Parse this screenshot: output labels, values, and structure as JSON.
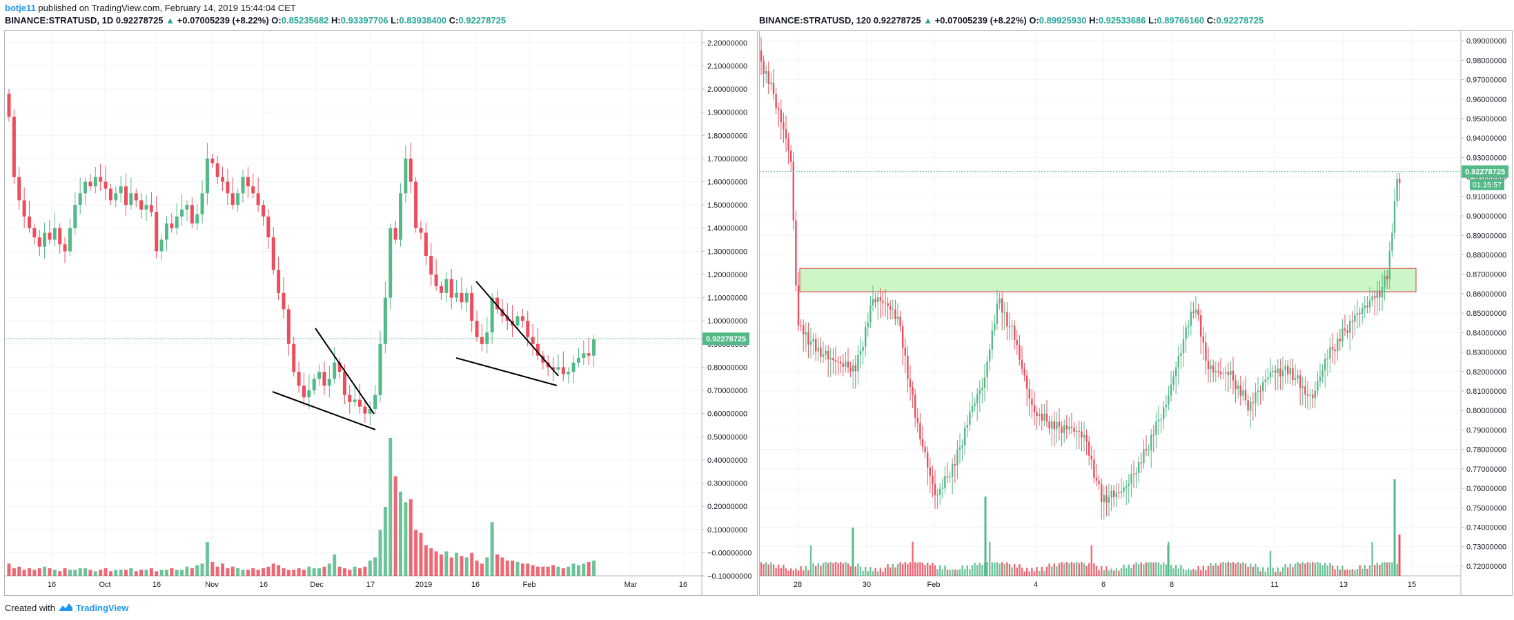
{
  "header": {
    "author": "botje11",
    "published_text": "published on TradingView.com, February 14, 2019 15:44:04 CET"
  },
  "footer": {
    "created_with": "Created with",
    "brand": "TradingView"
  },
  "colors": {
    "up": "#53b987",
    "down": "#eb4d5c",
    "zone_fill": "#ccf5c8",
    "zone_border": "#e53935",
    "price_label": "#53b987"
  },
  "chart_data": [
    {
      "type": "candlestick",
      "symbol": "BINANCE:STRATUSD, 1D",
      "last": "0.92278725",
      "change": "+0.07005239 (+8.22%)",
      "open_label": "O:",
      "open": "0.85235682",
      "high_label": "H:",
      "high": "0.93397706",
      "low_label": "L:",
      "low": "0.83938400",
      "close_label": "C:",
      "close": "0.92278725",
      "price_label": "0.92278725",
      "ylim": [
        -0.1,
        2.25
      ],
      "y_ticks": [
        "2.20000000",
        "2.10000000",
        "2.00000000",
        "1.90000000",
        "1.80000000",
        "1.70000000",
        "1.60000000",
        "1.50000000",
        "1.40000000",
        "1.30000000",
        "1.20000000",
        "1.10000000",
        "1.00000000",
        "0.90000000",
        "0.80000000",
        "0.70000000",
        "0.60000000",
        "0.50000000",
        "0.40000000",
        "0.30000000",
        "0.20000000",
        "0.10000000",
        "−0.00000000",
        "−0.10000000"
      ],
      "x_ticks": [
        "16",
        "Oct",
        "16",
        "Nov",
        "16",
        "Dec",
        "17",
        "2019",
        "16",
        "Feb",
        "Mar",
        "16"
      ],
      "close_series": [
        1.88,
        1.62,
        1.52,
        1.45,
        1.4,
        1.36,
        1.32,
        1.38,
        1.35,
        1.4,
        1.33,
        1.3,
        1.4,
        1.5,
        1.55,
        1.6,
        1.58,
        1.62,
        1.6,
        1.57,
        1.52,
        1.55,
        1.58,
        1.5,
        1.55,
        1.52,
        1.48,
        1.5,
        1.47,
        1.3,
        1.35,
        1.42,
        1.4,
        1.45,
        1.48,
        1.5,
        1.42,
        1.46,
        1.55,
        1.7,
        1.68,
        1.62,
        1.6,
        1.55,
        1.5,
        1.55,
        1.62,
        1.58,
        1.55,
        1.5,
        1.45,
        1.36,
        1.22,
        1.12,
        1.05,
        0.9,
        0.78,
        0.72,
        0.67,
        0.7,
        0.75,
        0.78,
        0.72,
        0.75,
        0.82,
        0.78,
        0.68,
        0.65,
        0.66,
        0.63,
        0.6,
        0.62,
        0.68,
        0.9,
        1.1,
        1.4,
        1.35,
        1.55,
        1.7,
        1.6,
        1.4,
        1.38,
        1.28,
        1.2,
        1.15,
        1.12,
        1.18,
        1.1,
        1.12,
        1.08,
        1.12,
        1.0,
        0.93,
        0.9,
        0.95,
        1.1,
        1.05,
        1.02,
        1.0,
        0.98,
        1.02,
        1.0,
        0.93,
        0.9,
        0.85,
        0.82,
        0.8,
        0.79,
        0.8,
        0.77,
        0.78,
        0.82,
        0.84,
        0.86,
        0.85,
        0.92
      ],
      "volume_series": [
        8,
        5,
        6,
        4,
        5,
        4,
        5,
        6,
        5,
        4,
        3,
        5,
        4,
        4,
        5,
        5,
        4,
        3,
        4,
        5,
        3,
        4,
        4,
        4,
        5,
        3,
        4,
        4,
        5,
        3,
        4,
        4,
        5,
        4,
        4,
        6,
        5,
        7,
        8,
        22,
        9,
        6,
        8,
        5,
        6,
        5,
        4,
        4,
        5,
        4,
        5,
        6,
        8,
        7,
        5,
        4,
        4,
        5,
        4,
        6,
        5,
        5,
        6,
        8,
        14,
        6,
        5,
        4,
        6,
        5,
        6,
        10,
        12,
        30,
        45,
        90,
        65,
        55,
        48,
        50,
        30,
        28,
        20,
        18,
        16,
        14,
        16,
        12,
        15,
        13,
        12,
        15,
        10,
        8,
        12,
        35,
        14,
        12,
        10,
        10,
        9,
        8,
        8,
        7,
        6,
        6,
        6,
        7,
        6,
        5,
        6,
        8,
        7,
        8,
        9,
        10
      ],
      "annotations": "trend lines"
    },
    {
      "type": "candlestick",
      "symbol": "BINANCE:STRATUSD, 120",
      "last": "0.92278725",
      "change": "+0.07005239 (+8.22%)",
      "open_label": "O:",
      "open": "0.89925930",
      "high_label": "H:",
      "high": "0.92533686",
      "low_label": "L:",
      "low": "0.89766160",
      "close_label": "C:",
      "close": "0.92278725",
      "price_label": "0.92278725",
      "countdown": "01:15:57",
      "ylim": [
        0.715,
        0.995
      ],
      "y_ticks": [
        "0.99000000",
        "0.98000000",
        "0.97000000",
        "0.96000000",
        "0.95000000",
        "0.94000000",
        "0.93000000",
        "0.92000000",
        "0.91000000",
        "0.90000000",
        "0.89000000",
        "0.88000000",
        "0.87000000",
        "0.86000000",
        "0.85000000",
        "0.84000000",
        "0.83000000",
        "0.82000000",
        "0.81000000",
        "0.80000000",
        "0.79000000",
        "0.78000000",
        "0.77000000",
        "0.76000000",
        "0.75000000",
        "0.74000000",
        "0.73000000",
        "0.72000000"
      ],
      "x_ticks": [
        "28",
        "30",
        "Feb",
        "4",
        "6",
        "8",
        "11",
        "13",
        "15"
      ],
      "zone": [
        0.861,
        0.873
      ]
    }
  ]
}
